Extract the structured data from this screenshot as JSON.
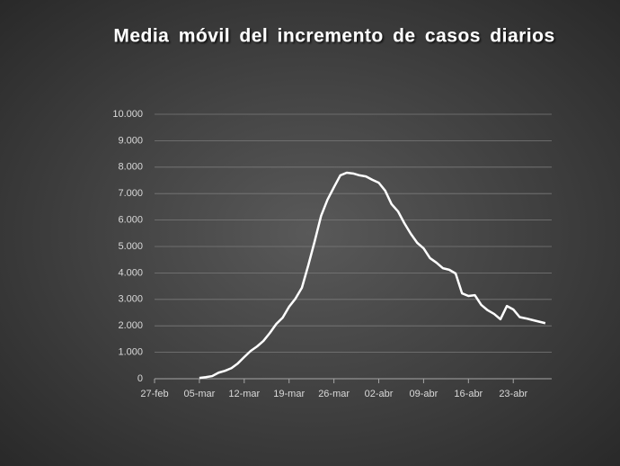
{
  "chart_data": {
    "type": "line",
    "title": "Media móvil del incremento de casos diarios",
    "categories": [
      "27-feb",
      null,
      null,
      null,
      null,
      null,
      null,
      "05-mar",
      null,
      null,
      null,
      null,
      null,
      null,
      "12-mar",
      null,
      null,
      null,
      null,
      null,
      null,
      "19-mar",
      null,
      null,
      null,
      null,
      null,
      null,
      "26-mar",
      null,
      null,
      null,
      null,
      null,
      null,
      "02-abr",
      null,
      null,
      null,
      null,
      null,
      null,
      "09-abr",
      null,
      null,
      null,
      null,
      null,
      null,
      "16-abr",
      null,
      null,
      null,
      null,
      null,
      null,
      "23-abr",
      null,
      null,
      null,
      null,
      null,
      null
    ],
    "values": [
      null,
      null,
      null,
      null,
      null,
      null,
      null,
      30,
      60,
      100,
      230,
      300,
      400,
      580,
      820,
      1050,
      1220,
      1430,
      1730,
      2070,
      2310,
      2720,
      3030,
      3440,
      4290,
      5200,
      6160,
      6770,
      7240,
      7690,
      7790,
      7760,
      7690,
      7650,
      7520,
      7410,
      7110,
      6600,
      6330,
      5880,
      5480,
      5140,
      4930,
      4560,
      4390,
      4180,
      4120,
      3980,
      3230,
      3130,
      3160,
      2790,
      2590,
      2450,
      2250,
      2750,
      2620,
      2330,
      2280,
      2220,
      2160,
      2100,
      null
    ],
    "color": "#ffffff",
    "ylim": [
      0,
      10000
    ],
    "yticks": [
      0,
      {
        "value": 1000,
        "label": "1.000"
      },
      {
        "value": 2000,
        "label": "2.000"
      },
      {
        "value": 3000,
        "label": "3.000"
      },
      {
        "value": 4000,
        "label": "4.000"
      },
      {
        "value": 5000,
        "label": "5.000"
      },
      {
        "value": 6000,
        "label": "6.000"
      },
      {
        "value": 7000,
        "label": "7.000"
      },
      {
        "value": 8000,
        "label": "8.000"
      },
      {
        "value": 9000,
        "label": "9.000"
      },
      {
        "value": 10000,
        "label": "10.000"
      }
    ],
    "grid": true
  }
}
